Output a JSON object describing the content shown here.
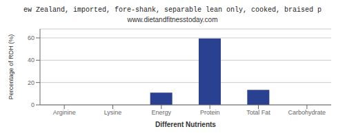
{
  "chart_data": {
    "type": "bar",
    "title": "ew Zealand, imported, fore-shank, separable lean only, cooked, braised p",
    "subtitle": "www.dietandfitnesstoday.com",
    "xlabel": "Different Nutrients",
    "ylabel": "Percentage of RDH (%)",
    "categories": [
      "Arginine",
      "Lysine",
      "Energy",
      "Protein",
      "Total Fat",
      "Carbohydrate"
    ],
    "values": [
      0,
      0,
      11,
      59.5,
      13.5,
      0
    ],
    "color": "#2a4090",
    "ylim": [
      0,
      68
    ],
    "yticks": [
      0,
      20,
      40,
      60
    ],
    "grid": true
  }
}
